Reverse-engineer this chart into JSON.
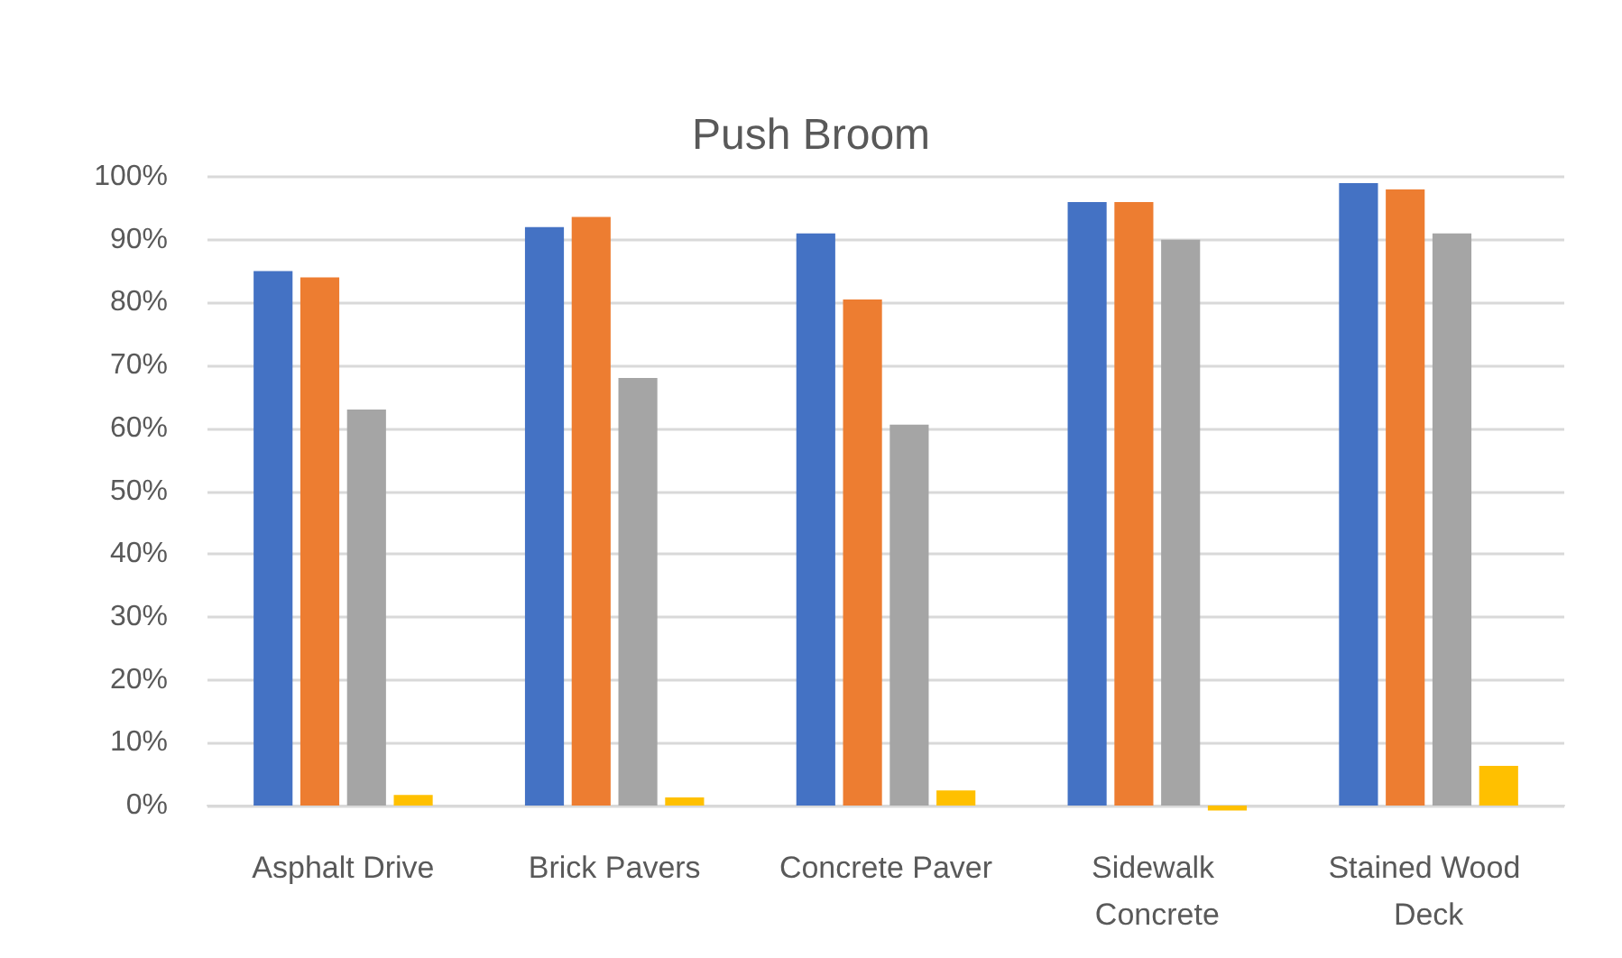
{
  "chart_data": {
    "type": "bar",
    "title": "Push Broom",
    "categories": [
      "Asphalt Drive",
      "Brick Pavers",
      "Concrete Paver",
      "Sidewalk Concrete",
      "Stained Wood Deck"
    ],
    "series": [
      {
        "color": "#4472c4",
        "values": [
          85,
          92,
          91,
          96,
          99
        ]
      },
      {
        "color": "#ed7d31",
        "values": [
          84,
          93.6,
          80.5,
          96,
          98
        ]
      },
      {
        "color": "#a5a5a5",
        "values": [
          63,
          68,
          60.6,
          90,
          91
        ]
      },
      {
        "color": "#ffc000",
        "values": [
          1.7,
          1.3,
          2.4,
          -0.8,
          6.3
        ]
      }
    ],
    "ylim": [
      -1,
      100
    ],
    "yticks": [
      {
        "value": 0,
        "label": "0%"
      },
      {
        "value": 10,
        "label": "10%"
      },
      {
        "value": 20,
        "label": "20%"
      },
      {
        "value": 30,
        "label": "30%"
      },
      {
        "value": 40,
        "label": "40%"
      },
      {
        "value": 50,
        "label": "50%"
      },
      {
        "value": 60,
        "label": "60%"
      },
      {
        "value": 70,
        "label": "70%"
      },
      {
        "value": 80,
        "label": "80%"
      },
      {
        "value": 90,
        "label": "90%"
      },
      {
        "value": 100,
        "label": "100%"
      }
    ],
    "grid": "y"
  }
}
